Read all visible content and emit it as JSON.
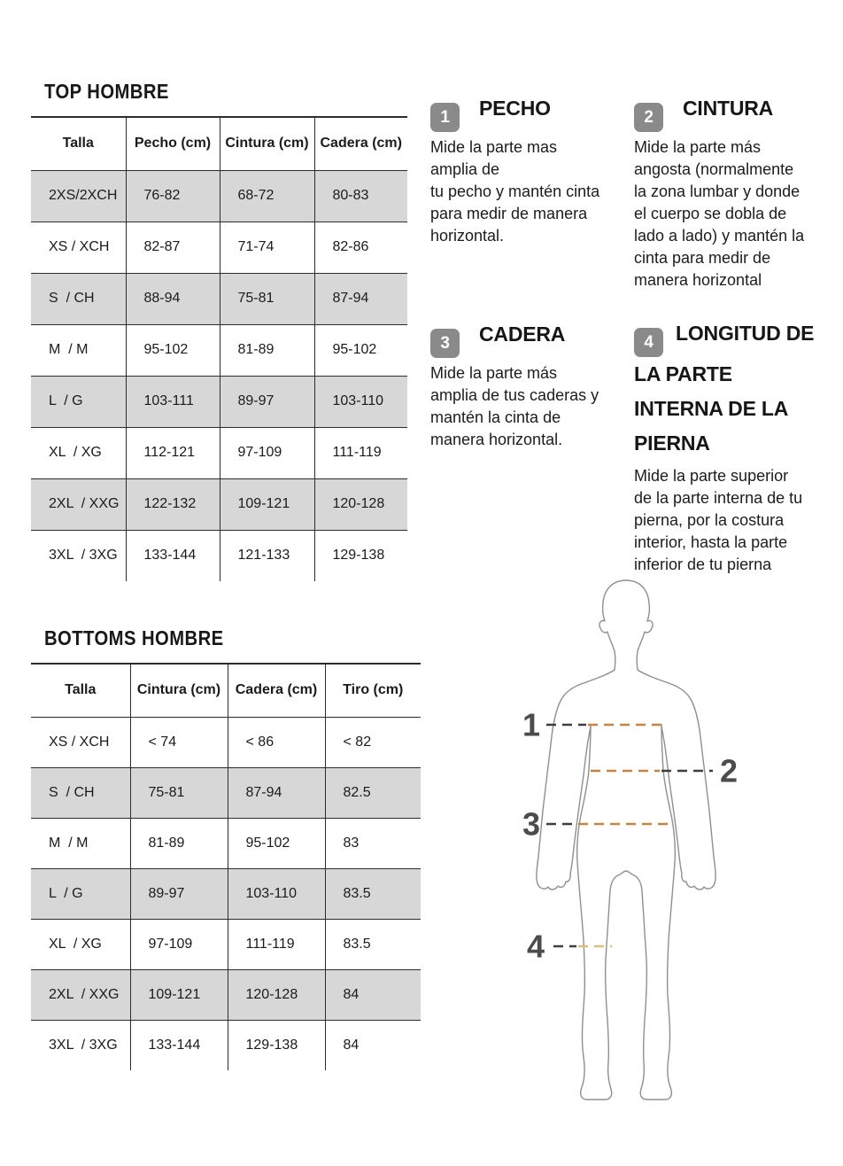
{
  "colors": {
    "row_shade": "#d7d7d7",
    "table_border": "#2c2c2c",
    "badge_bg": "#8a8a8a",
    "badge_text": "#ffffff",
    "dash_dark": "#3f3f3f",
    "dash_orange": "#c8833e",
    "dash_tan": "#dfbd80",
    "body_outline": "#8f8f8f",
    "figure_label": "#4c4c4c"
  },
  "tables": [
    {
      "title": "TOP HOMBRE",
      "headers": [
        "Talla",
        "Pecho (cm)",
        "Cintura (cm)",
        "Cadera (cm)"
      ],
      "rows": [
        [
          "2XS/2XCH",
          "76-82",
          "68-72",
          "80-83"
        ],
        [
          "XS / XCH",
          "82-87",
          "71-74",
          "82-86"
        ],
        [
          "S  / CH",
          "88-94",
          "75-81",
          "87-94"
        ],
        [
          "M  / M",
          "95-102",
          "81-89",
          "95-102"
        ],
        [
          "L  / G",
          "103-111",
          "89-97",
          "103-110"
        ],
        [
          "XL  / XG",
          "112-121",
          "97-109",
          "111-119"
        ],
        [
          "2XL  / XXG",
          "122-132",
          "109-121",
          "120-128"
        ],
        [
          "3XL  / 3XG",
          "133-144",
          "121-133",
          "129-138"
        ]
      ],
      "row_shading": "even"
    },
    {
      "title": "BOTTOMS HOMBRE",
      "headers": [
        "Talla",
        "Cintura (cm)",
        "Cadera (cm)",
        "Tiro (cm)"
      ],
      "rows": [
        [
          "XS / XCH",
          "< 74",
          "< 86",
          "< 82"
        ],
        [
          "S  / CH",
          "75-81",
          "87-94",
          "82.5"
        ],
        [
          "M  / M",
          "81-89",
          "95-102",
          "83"
        ],
        [
          "L  / G",
          "89-97",
          "103-110",
          "83.5"
        ],
        [
          "XL  / XG",
          "97-109",
          "111-119",
          "83.5"
        ],
        [
          "2XL  / XXG",
          "109-121",
          "120-128",
          "84"
        ],
        [
          "3XL  / 3XG",
          "133-144",
          "129-138",
          "84"
        ]
      ],
      "row_shading": "odd"
    }
  ],
  "instructions": [
    {
      "number": "1",
      "title": "PECHO",
      "body": "Mide la parte mas\namplia de\ntu pecho y mantén cinta\npara medir de manera\nhorizontal."
    },
    {
      "number": "2",
      "title": "CINTURA",
      "body": "Mide la parte más\nangosta (normalmente\nla zona lumbar y donde\nel cuerpo se dobla de\nlado a lado) y mantén la\ncinta para medir de\nmanera horizontal"
    },
    {
      "number": "3",
      "title": "CADERA",
      "body": "Mide la parte más\namplia de tus caderas y\nmantén la cinta de\nmanera horizontal."
    },
    {
      "number": "4",
      "title": "LONGITUD DE\nLA PARTE\nINTERNA DE LA\nPIERNA",
      "body": "Mide la parte superior\nde la parte interna de tu\npierna, por la costura\ninterior, hasta la parte\ninferior de tu pierna"
    }
  ],
  "figure": {
    "labels": [
      "1",
      "2",
      "3",
      "4"
    ],
    "line_names": [
      "chest",
      "waist",
      "hip",
      "inseam"
    ]
  }
}
